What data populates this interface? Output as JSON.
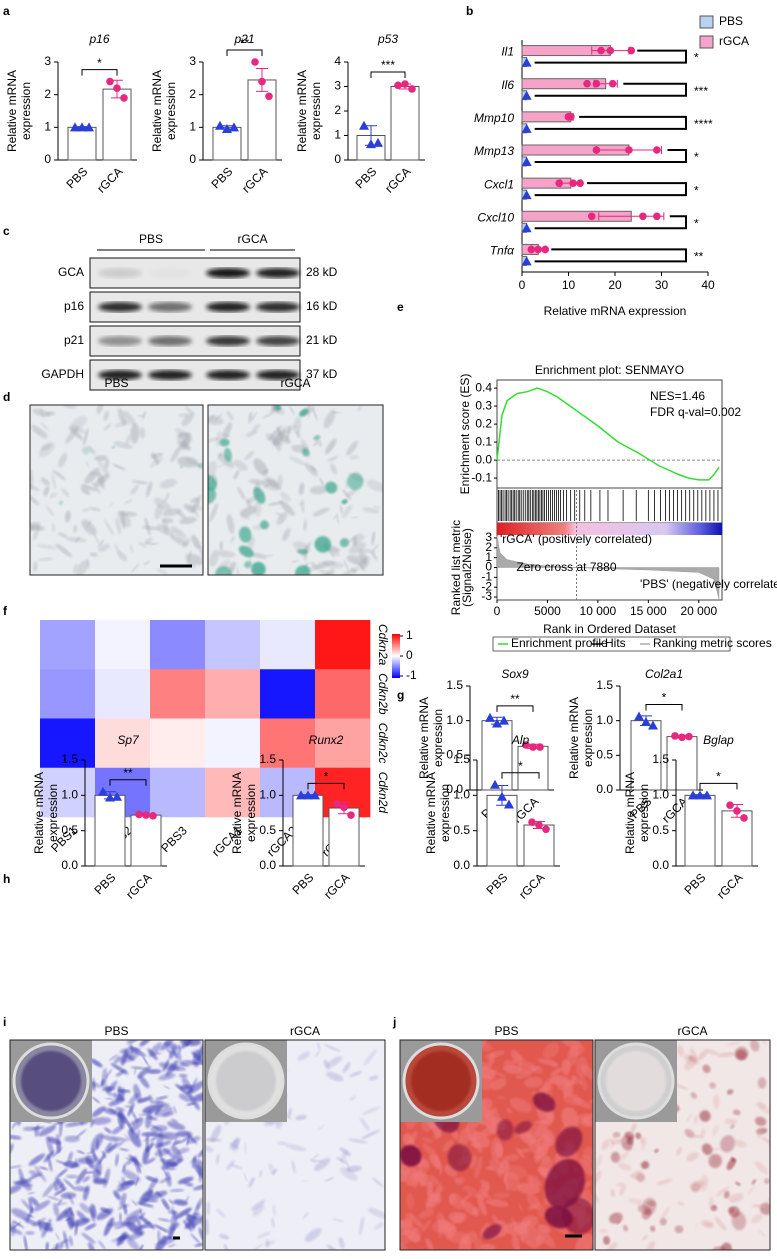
{
  "chart_data": [
    {
      "type": "bar",
      "panel": "a",
      "title": "p16",
      "ylabel": [
        "Relative mRNA",
        "expression"
      ],
      "categories": [
        "PBS",
        "rGCA"
      ],
      "values": [
        1.0,
        2.17
      ],
      "errors": [
        0.02,
        0.27
      ],
      "points": [
        [
          1.0,
          1.0,
          1.0
        ],
        [
          2.4,
          2.2,
          1.9
        ]
      ],
      "colors": [
        "#2a3fd8",
        "#e6287f"
      ],
      "markers": [
        "triangle",
        "circle"
      ],
      "ylim": [
        0,
        3
      ],
      "yticks": [
        0,
        1,
        2,
        3
      ],
      "significance": "*"
    },
    {
      "type": "bar",
      "title": "p21",
      "ylabel": [
        "Relative mRNA",
        "expression"
      ],
      "categories": [
        "PBS",
        "rGCA"
      ],
      "values": [
        1.0,
        2.45
      ],
      "errors": [
        0.05,
        0.35
      ],
      "points": [
        [
          1.05,
          0.95,
          1.0
        ],
        [
          3.0,
          2.4,
          1.95
        ]
      ],
      "colors": [
        "#2a3fd8",
        "#e6287f"
      ],
      "markers": [
        "triangle",
        "circle"
      ],
      "ylim": [
        0,
        3
      ],
      "yticks": [
        0,
        1,
        2,
        3
      ],
      "significance": "**"
    },
    {
      "type": "bar",
      "title": "p53",
      "ylabel": [
        "Relative mRNA",
        "expression"
      ],
      "categories": [
        "PBS",
        "rGCA"
      ],
      "values": [
        1.0,
        3.0
      ],
      "errors": [
        0.4,
        0.1
      ],
      "points": [
        [
          1.4,
          0.65,
          0.7
        ],
        [
          3.05,
          3.1,
          2.9
        ]
      ],
      "colors": [
        "#2a3fd8",
        "#e6287f"
      ],
      "markers": [
        "triangle",
        "circle"
      ],
      "ylim": [
        0,
        4
      ],
      "yticks": [
        0,
        1,
        2,
        3,
        4
      ],
      "significance": "***"
    },
    {
      "type": "bar",
      "orientation": "horizontal",
      "panel": "b",
      "xlabel": "Relative mRNA expression",
      "categories": [
        "Il1",
        "Il6",
        "Mmp10",
        "Mmp13",
        "Cxcl1",
        "Cxcl10",
        "Tnfα"
      ],
      "series": [
        {
          "name": "PBS",
          "color": "#b9d3ee",
          "marker_color": "#2a3fd8",
          "values": [
            1,
            1,
            1,
            1,
            1,
            1,
            1
          ]
        },
        {
          "name": "rGCA",
          "color": "#f5a3c9",
          "marker_color": "#e6287f",
          "values": [
            19,
            18,
            10.5,
            23,
            10.5,
            23.5,
            3.5
          ],
          "errors": [
            4,
            2.5,
            0.5,
            7,
            2.2,
            7,
            1.5
          ],
          "points": [
            [
              17,
              19,
              23.5
            ],
            [
              14,
              16,
              19.5
            ],
            [
              10,
              10,
              10.5
            ],
            [
              16,
              23,
              29
            ],
            [
              8,
              11,
              12.5
            ],
            [
              15,
              26,
              29
            ],
            [
              2,
              3.5,
              5
            ]
          ]
        }
      ],
      "significance": [
        "*",
        "***",
        "****",
        "*",
        "*",
        "*",
        "**"
      ],
      "xlim": [
        0,
        40
      ],
      "xticks": [
        0,
        10,
        20,
        30,
        40
      ],
      "legend": "top-right"
    },
    {
      "type": "enrichment",
      "panel": "e",
      "title": "Enrichment plot: SENMAYO",
      "annotations": [
        "NES=1.46",
        "FDR q-val=0.002"
      ],
      "color": "#33dd33",
      "x": [
        0,
        500,
        1000,
        2000,
        3000,
        4000,
        5000,
        6000,
        8000,
        10000,
        12000,
        14000,
        16000,
        18000,
        19000,
        20000,
        21000,
        21500,
        22000
      ],
      "values": [
        0,
        0.25,
        0.33,
        0.37,
        0.38,
        0.4,
        0.38,
        0.35,
        0.27,
        0.19,
        0.1,
        0.04,
        -0.03,
        -0.08,
        -0.1,
        -0.11,
        -0.11,
        -0.08,
        -0.04
      ],
      "hits": [
        150,
        300,
        450,
        600,
        800,
        950,
        1100,
        1300,
        1450,
        1600,
        1750,
        1900,
        2100,
        2250,
        2400,
        2600,
        2800,
        3000,
        3150,
        3300,
        3500,
        3650,
        3800,
        3950,
        4100,
        4250,
        4400,
        4550,
        4700,
        4900,
        5100,
        5300,
        5500,
        5700,
        5900,
        6100,
        6300,
        6600,
        6900,
        7300,
        7700,
        8200,
        8700,
        9300,
        10200,
        11000,
        12500,
        13800,
        15000,
        15600,
        16200,
        16700,
        17100,
        17500,
        17900,
        18300,
        18700,
        19100,
        19500,
        19900,
        20300,
        20700,
        21100,
        21500,
        21900
      ],
      "metric_x": [
        0,
        300,
        1000,
        3000,
        5000,
        7880,
        10000,
        15000,
        20000,
        21500,
        22000
      ],
      "metric": [
        3.2,
        1.5,
        0.8,
        0.35,
        0.15,
        0,
        -0.1,
        -0.25,
        -0.5,
        -1.2,
        -3.2
      ],
      "zero_cross": 7880,
      "zero_cross_label": "Zero cross at 7880",
      "pos_label": "'rGCA' (positively correlated)",
      "neg_label": "'PBS' (negatively correlated)",
      "xlabel": "Rank in Ordered Dataset",
      "ylabel": "Enrichment score (ES)",
      "y2label": [
        "Ranked list metric",
        "(Signal2Noise)"
      ],
      "xlim": [
        0,
        22300
      ],
      "xticks": [
        0,
        5000,
        {
          "value": 10000,
          "label": "10 000"
        },
        {
          "value": 15000,
          "label": "15 000"
        },
        {
          "value": 20000,
          "label": "20 000"
        }
      ],
      "ylim": [
        -0.155,
        0.445
      ],
      "yticks": [
        0.4,
        0.3,
        0.2,
        0.1,
        {
          "value": 0,
          "label": "0.0"
        },
        -0.1
      ],
      "y2lim": [
        -3.3,
        3.3
      ],
      "y2ticks": [
        3,
        2,
        1,
        0,
        -1,
        -2,
        -3
      ],
      "legend": [
        "Enrichment profile",
        "Hits",
        "Ranking metric scores"
      ]
    },
    {
      "type": "heatmap",
      "panel": "f",
      "rows": [
        "Cdkn2a",
        "Cdkn2b",
        "Cdkn2c",
        "Cdkn2d"
      ],
      "columns": [
        "PBS1",
        "PBS2",
        "PBS3",
        "rGCA1",
        "rGCA2",
        "rGCA3"
      ],
      "values": [
        [
          -0.4,
          -0.05,
          -0.5,
          -0.25,
          -0.1,
          1.0
        ],
        [
          -0.45,
          -0.1,
          0.55,
          0.35,
          -1.0,
          0.65
        ],
        [
          -1.0,
          0.15,
          0.08,
          -0.05,
          0.6,
          0.4
        ],
        [
          -0.2,
          -0.6,
          -0.3,
          0.3,
          -0.3,
          0.95
        ]
      ],
      "clim": [
        -1.1,
        1.1
      ],
      "cticks": [
        1,
        0,
        -1
      ],
      "colors": [
        "#0000ff",
        "#ffffff",
        "#ff0000"
      ]
    },
    {
      "type": "bar",
      "panel": "g",
      "title": "Sox9",
      "ylabel": [
        "Relative mRNA",
        "expression"
      ],
      "categories": [
        "PBS",
        "rGCA"
      ],
      "values": [
        1.0,
        0.63
      ],
      "errors": [
        0.05,
        0.03
      ],
      "points": [
        [
          1.04,
          0.96,
          1.0
        ],
        [
          0.65,
          0.62,
          0.62
        ]
      ],
      "colors": [
        "#2a3fd8",
        "#e6287f"
      ],
      "markers": [
        "triangle",
        "circle"
      ],
      "ylim": [
        0,
        1.5
      ],
      "yticks": [
        {
          "value": 0,
          "label": "0.0"
        },
        0.5,
        {
          "value": 1,
          "label": "1.0"
        },
        1.5
      ],
      "significance": "**"
    },
    {
      "type": "bar",
      "title": "Col2a1",
      "ylabel": [
        "Relative mRNA",
        "expression"
      ],
      "categories": [
        "PBS",
        "rGCA"
      ],
      "values": [
        1.0,
        0.77
      ],
      "errors": [
        0.07,
        0.02
      ],
      "points": [
        [
          1.06,
          0.98,
          0.93
        ],
        [
          0.78,
          0.76,
          0.77
        ]
      ],
      "colors": [
        "#2a3fd8",
        "#e6287f"
      ],
      "markers": [
        "triangle",
        "circle"
      ],
      "ylim": [
        0,
        1.5
      ],
      "yticks": [
        {
          "value": 0,
          "label": "0.0"
        },
        0.5,
        {
          "value": 1,
          "label": "1.0"
        },
        1.5
      ],
      "significance": "*"
    },
    {
      "type": "bar",
      "panel": "h",
      "title": "Sp7",
      "ylabel": [
        "Relative mRNA",
        "expression"
      ],
      "categories": [
        "PBS",
        "rGCA"
      ],
      "values": [
        1.0,
        0.72
      ],
      "errors": [
        0.05,
        0.01
      ],
      "points": [
        [
          1.05,
          0.97,
          0.98
        ],
        [
          0.73,
          0.72,
          0.71
        ]
      ],
      "colors": [
        "#2a3fd8",
        "#e6287f"
      ],
      "markers": [
        "triangle",
        "circle"
      ],
      "ylim": [
        0,
        1.5
      ],
      "yticks": [
        {
          "value": 0,
          "label": "0.0"
        },
        0.5,
        {
          "value": 1,
          "label": "1.0"
        },
        1.5
      ],
      "significance": "**"
    },
    {
      "type": "bar",
      "title": "Runx2",
      "ylabel": [
        "Relative mRNA",
        "expression"
      ],
      "categories": [
        "PBS",
        "rGCA"
      ],
      "values": [
        1.0,
        0.82
      ],
      "errors": [
        0.01,
        0.08
      ],
      "points": [
        [
          1.0,
          1.0,
          1.0
        ],
        [
          0.88,
          0.83,
          0.72
        ]
      ],
      "colors": [
        "#2a3fd8",
        "#e6287f"
      ],
      "markers": [
        "triangle",
        "circle"
      ],
      "ylim": [
        0,
        1.5
      ],
      "yticks": [
        {
          "value": 0,
          "label": "0.0"
        },
        0.5,
        {
          "value": 1,
          "label": "1.0"
        },
        1.5
      ],
      "significance": "*"
    },
    {
      "type": "bar",
      "title": "Alp",
      "ylabel": [
        "Relative mRNA",
        "expression"
      ],
      "categories": [
        "PBS",
        "rGCA"
      ],
      "values": [
        1.0,
        0.58
      ],
      "errors": [
        0.14,
        0.05
      ],
      "points": [
        [
          1.15,
          0.98,
          0.87
        ],
        [
          0.62,
          0.58,
          0.52
        ]
      ],
      "colors": [
        "#2a3fd8",
        "#e6287f"
      ],
      "markers": [
        "triangle",
        "circle"
      ],
      "ylim": [
        0,
        1.5
      ],
      "yticks": [
        {
          "value": 0,
          "label": "0.0"
        },
        0.5,
        {
          "value": 1,
          "label": "1.0"
        },
        1.5
      ],
      "significance": "*"
    },
    {
      "type": "bar",
      "title": "Bglap",
      "ylabel": [
        "Relative mRNA",
        "expression"
      ],
      "categories": [
        "PBS",
        "rGCA"
      ],
      "values": [
        1.0,
        0.78
      ],
      "errors": [
        0.01,
        0.09
      ],
      "points": [
        [
          1.0,
          1.0,
          1.0
        ],
        [
          0.86,
          0.78,
          0.68
        ]
      ],
      "colors": [
        "#2a3fd8",
        "#e6287f"
      ],
      "markers": [
        "triangle",
        "circle"
      ],
      "ylim": [
        0,
        1.5
      ],
      "yticks": [
        {
          "value": 0,
          "label": "0.0"
        },
        0.5,
        {
          "value": 1,
          "label": "1.0"
        },
        1.5
      ],
      "significance": "*"
    }
  ],
  "figures": {
    "c": {
      "panel": "c",
      "groups": [
        "PBS",
        "rGCA"
      ],
      "rows": [
        {
          "protein": "GCA",
          "size": "28 kD"
        },
        {
          "protein": "p16",
          "size": "16 kD"
        },
        {
          "protein": "p21",
          "size": "21 kD"
        },
        {
          "protein": "GAPDH",
          "size": "37 kD"
        }
      ]
    },
    "d": {
      "panel": "d",
      "images": [
        "PBS",
        "rGCA"
      ]
    },
    "i": {
      "panel": "i",
      "images": [
        "PBS",
        "rGCA"
      ]
    },
    "j": {
      "panel": "j",
      "images": [
        "PBS",
        "rGCA"
      ]
    }
  }
}
